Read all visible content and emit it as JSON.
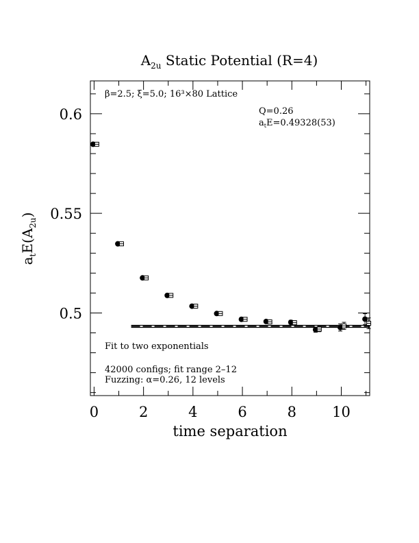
{
  "chart_data": {
    "type": "scatter",
    "title_main": "A",
    "title_sub": "2u",
    "title_rest": " Static Potential (R=4)",
    "xlabel": "time separation",
    "ylabel_main": "a",
    "ylabel_sub1": "t",
    "ylabel_mid": "E(A",
    "ylabel_sub2": "2u",
    "ylabel_end": ")",
    "xlim": [
      -0.15,
      11.15
    ],
    "ylim": [
      0.4585,
      0.6165
    ],
    "x_ticks": [
      0,
      2,
      4,
      6,
      8,
      10
    ],
    "x_tick_labels": [
      "0",
      "2",
      "4",
      "6",
      "8",
      "10"
    ],
    "y_ticks": [
      0.5,
      0.55,
      0.6
    ],
    "y_tick_labels": [
      "0.5",
      "0.55",
      "0.6"
    ],
    "annotations": {
      "lattice": "β=2.5; ξ=5.0; 16³×80 Lattice",
      "q": "Q=0.26",
      "energy_main": "a",
      "energy_sub": "t",
      "energy_rest": "E=0.49328(53)",
      "fit_type": "Fit to two exponentials",
      "configs": "42000 configs; fit range 2–12",
      "fuzzing": "Fuzzing: α=0.26, 12 levels"
    },
    "series": [
      {
        "marker": "filled-circle",
        "x": [
          0,
          1,
          2,
          3,
          4,
          5,
          6,
          7,
          8,
          9,
          10,
          11
        ],
        "y": [
          0.5847,
          0.5347,
          0.5176,
          0.5088,
          0.5034,
          0.4997,
          0.4968,
          0.4957,
          0.4953,
          0.4916,
          0.4927,
          0.4969
        ],
        "err": [
          0.0002,
          0.0003,
          0.0003,
          0.0004,
          0.0004,
          0.0005,
          0.0006,
          0.0008,
          0.001,
          0.0013,
          0.0018,
          0.0027
        ]
      },
      {
        "marker": "open-square",
        "x": [
          0,
          1,
          2,
          3,
          4,
          5,
          6,
          7,
          8,
          9,
          10,
          11
        ],
        "y": [
          0.5847,
          0.5347,
          0.5176,
          0.5088,
          0.5034,
          0.4997,
          0.4968,
          0.4955,
          0.4951,
          0.4919,
          0.4935,
          0.4948
        ],
        "err": [
          0.0002,
          0.0003,
          0.0003,
          0.0004,
          0.0004,
          0.0005,
          0.0006,
          0.0008,
          0.001,
          0.0013,
          0.0018,
          0.0027
        ]
      }
    ],
    "fit": {
      "x_range": [
        1.5,
        11.15
      ],
      "value": 0.49328,
      "error": 0.00053
    }
  }
}
